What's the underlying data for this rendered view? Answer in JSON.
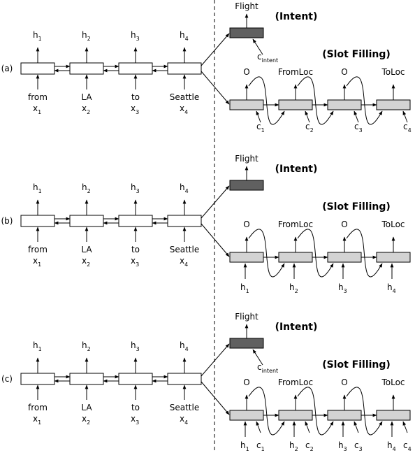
{
  "panels": [
    {
      "id": "a",
      "label": "(a)",
      "inputs": [
        {
          "word": "from",
          "x": "x",
          "sub": "1"
        },
        {
          "word": "LA",
          "x": "x",
          "sub": "2"
        },
        {
          "word": "to",
          "x": "x",
          "sub": "3"
        },
        {
          "word": "Seattle",
          "x": "x",
          "sub": "4"
        }
      ],
      "hidden": [
        {
          "h": "h",
          "sub": "1"
        },
        {
          "h": "h",
          "sub": "2"
        },
        {
          "h": "h",
          "sub": "3"
        },
        {
          "h": "h",
          "sub": "4"
        }
      ],
      "intent_output": "Flight",
      "intent_title": "(Intent)",
      "slot_title": "(Slot Filling)",
      "slot_outputs": [
        "O",
        "FromLoc",
        "O",
        "ToLoc"
      ],
      "intent_context": {
        "c": "c",
        "sub": "intent"
      },
      "decoder_inputs": [
        {
          "c": "c",
          "csub": "1"
        },
        {
          "c": "c",
          "csub": "2"
        },
        {
          "c": "c",
          "csub": "3"
        },
        {
          "c": "c",
          "csub": "4"
        }
      ]
    },
    {
      "id": "b",
      "label": "(b)",
      "inputs": [
        {
          "word": "from",
          "x": "x",
          "sub": "1"
        },
        {
          "word": "LA",
          "x": "x",
          "sub": "2"
        },
        {
          "word": "to",
          "x": "x",
          "sub": "3"
        },
        {
          "word": "Seattle",
          "x": "x",
          "sub": "4"
        }
      ],
      "hidden": [
        {
          "h": "h",
          "sub": "1"
        },
        {
          "h": "h",
          "sub": "2"
        },
        {
          "h": "h",
          "sub": "3"
        },
        {
          "h": "h",
          "sub": "4"
        }
      ],
      "intent_output": "Flight",
      "intent_title": "(Intent)",
      "slot_title": "(Slot Filling)",
      "slot_outputs": [
        "O",
        "FromLoc",
        "O",
        "ToLoc"
      ],
      "decoder_inputs": [
        {
          "h": "h",
          "hsub": "1"
        },
        {
          "h": "h",
          "hsub": "2"
        },
        {
          "h": "h",
          "hsub": "3"
        },
        {
          "h": "h",
          "hsub": "4"
        }
      ]
    },
    {
      "id": "c",
      "label": "(c)",
      "inputs": [
        {
          "word": "from",
          "x": "x",
          "sub": "1"
        },
        {
          "word": "LA",
          "x": "x",
          "sub": "2"
        },
        {
          "word": "to",
          "x": "x",
          "sub": "3"
        },
        {
          "word": "Seattle",
          "x": "x",
          "sub": "4"
        }
      ],
      "hidden": [
        {
          "h": "h",
          "sub": "1"
        },
        {
          "h": "h",
          "sub": "2"
        },
        {
          "h": "h",
          "sub": "3"
        },
        {
          "h": "h",
          "sub": "4"
        }
      ],
      "intent_output": "Flight",
      "intent_title": "(Intent)",
      "slot_title": "(Slot Filling)",
      "slot_outputs": [
        "O",
        "FromLoc",
        "O",
        "ToLoc"
      ],
      "intent_context": {
        "c": "c",
        "sub": "intent"
      },
      "decoder_inputs": [
        {
          "h": "h",
          "hsub": "1",
          "c": "c",
          "csub": "1"
        },
        {
          "h": "h",
          "hsub": "2",
          "c": "c",
          "csub": "2"
        },
        {
          "h": "h",
          "hsub": "3",
          "c": "c",
          "csub": "3"
        },
        {
          "h": "h",
          "hsub": "4",
          "c": "c",
          "csub": "4"
        }
      ]
    }
  ]
}
